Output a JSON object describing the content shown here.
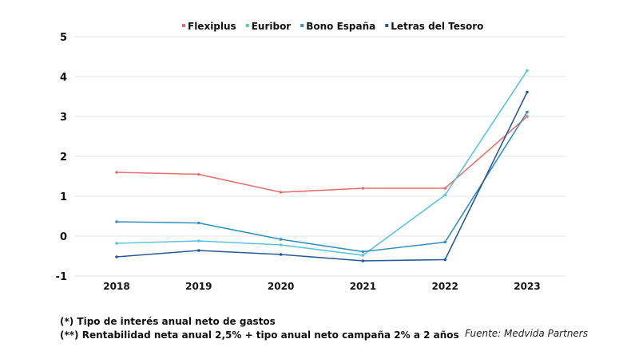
{
  "chart_data": {
    "type": "line",
    "categories": [
      "2018",
      "2019",
      "2020",
      "2021",
      "2022",
      "2023"
    ],
    "ylim": [
      -1,
      5
    ],
    "yticks": [
      "5",
      "4",
      "3",
      "2",
      "1",
      "0",
      "-1"
    ],
    "grid": true,
    "legend_placement": "top",
    "series": [
      {
        "name": "Flexiplus",
        "color": "#e8706c",
        "values": [
          1.6,
          1.55,
          1.1,
          1.2,
          1.2,
          3.0
        ]
      },
      {
        "name": "Euribor",
        "color": "#5bc4dc",
        "values": [
          -0.18,
          -0.12,
          -0.22,
          -0.48,
          1.03,
          4.15
        ]
      },
      {
        "name": "Bono España",
        "color": "#3190c0",
        "values": [
          0.36,
          0.33,
          -0.08,
          -0.39,
          -0.15,
          3.11
        ]
      },
      {
        "name": "Letras del Tesoro",
        "color": "#2a5a96",
        "values": [
          -0.52,
          -0.36,
          -0.46,
          -0.62,
          -0.59,
          3.61
        ]
      }
    ]
  },
  "notes": {
    "note1": "(*) Tipo de interés anual neto de gastos",
    "note2": "(**) Rentabilidad neta anual 2,5% + tipo anual neto campaña 2% a 2 años",
    "source": "Fuente: Medvida Partners"
  }
}
